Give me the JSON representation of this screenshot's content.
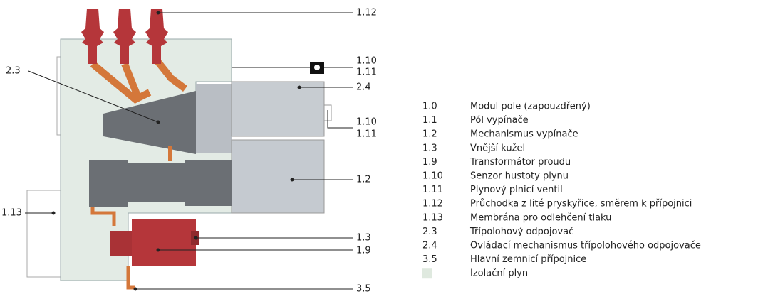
{
  "callouts": [
    {
      "label": "1.12"
    },
    {
      "label": "1.10"
    },
    {
      "label": "1.11"
    },
    {
      "label": "2.3"
    },
    {
      "label": "2.4"
    },
    {
      "label": "1.10"
    },
    {
      "label": "1.11"
    },
    {
      "label": "1.2"
    },
    {
      "label": "1.13"
    },
    {
      "label": "1.3"
    },
    {
      "label": "1.9"
    },
    {
      "label": "3.5"
    }
  ],
  "legend": {
    "items": [
      {
        "code": "1.0",
        "text": "Modul pole (zapouzdřený)"
      },
      {
        "code": "1.1",
        "text": "Pól vypínače"
      },
      {
        "code": "1.2",
        "text": "Mechanismus vypínače"
      },
      {
        "code": "1.3",
        "text": "Vnější kužel"
      },
      {
        "code": "1.9",
        "text": "Transformátor proudu"
      },
      {
        "code": "1.10",
        "text": "Senzor hustoty plynu"
      },
      {
        "code": "1.11",
        "text": "Plynový plnicí ventil"
      },
      {
        "code": "1.12",
        "text": "Průchodka z lité pryskyřice, směrem k přípojnici"
      },
      {
        "code": "1.13",
        "text": "Membrána pro odlehčení tlaku"
      },
      {
        "code": "2.3",
        "text": "Třípolohový odpojovač"
      },
      {
        "code": "2.4",
        "text": "Ovládací mechanismus třípolohového odpojovače"
      },
      {
        "code": "3.5",
        "text": "Hlavní zemnicí přípojnice"
      },
      {
        "text": "Izolační plyn"
      }
    ]
  }
}
